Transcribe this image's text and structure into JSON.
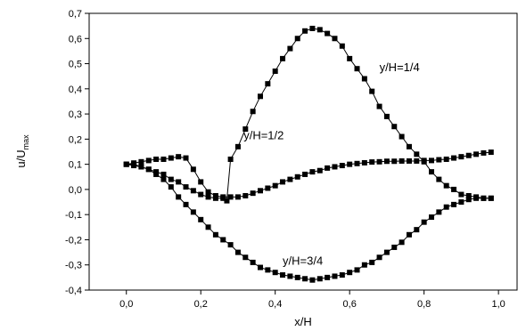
{
  "chart_data": {
    "type": "scatter",
    "xlabel": "x/H",
    "ylabel": {
      "base": "u/U",
      "sub": "max"
    },
    "xlim": [
      -0.1,
      1.05
    ],
    "ylim": [
      -0.4,
      0.7
    ],
    "xticks": [
      {
        "value": 0.0,
        "label": "0,0"
      },
      {
        "value": 0.2,
        "label": "0,2"
      },
      {
        "value": 0.4,
        "label": "0,4"
      },
      {
        "value": 0.6,
        "label": "0,6"
      },
      {
        "value": 0.8,
        "label": "0,8"
      },
      {
        "value": 1.0,
        "label": "1,0"
      }
    ],
    "yticks": [
      {
        "value": -0.4,
        "label": "-0,4"
      },
      {
        "value": -0.3,
        "label": "-0,3"
      },
      {
        "value": -0.2,
        "label": "-0,2"
      },
      {
        "value": -0.1,
        "label": "-0,1"
      },
      {
        "value": 0.0,
        "label": "0,0"
      },
      {
        "value": 0.1,
        "label": "0,1"
      },
      {
        "value": 0.2,
        "label": "0,2"
      },
      {
        "value": 0.3,
        "label": "0,3"
      },
      {
        "value": 0.4,
        "label": "0,4"
      },
      {
        "value": 0.5,
        "label": "0,5"
      },
      {
        "value": 0.6,
        "label": "0,6"
      },
      {
        "value": 0.7,
        "label": "0,7"
      }
    ],
    "grid": false,
    "marker": "square",
    "marker_color": "#000000",
    "annotations": [
      {
        "text": "y/H=1/4",
        "x": 0.68,
        "y": 0.47
      },
      {
        "text": "y/H=1/2",
        "x": 0.315,
        "y": 0.2
      },
      {
        "text": "y/H=3/4",
        "x": 0.42,
        "y": -0.3
      }
    ],
    "series": [
      {
        "points": [
          [
            0.0,
            0.1
          ],
          [
            0.02,
            0.1
          ],
          [
            0.04,
            0.09
          ],
          [
            0.06,
            0.08
          ],
          [
            0.08,
            0.07
          ],
          [
            0.1,
            0.06
          ],
          [
            0.12,
            0.04
          ],
          [
            0.14,
            0.03
          ],
          [
            0.16,
            0.01
          ],
          [
            0.18,
            -0.005
          ],
          [
            0.2,
            -0.02
          ],
          [
            0.22,
            -0.03
          ],
          [
            0.24,
            -0.035
          ],
          [
            0.26,
            -0.035
          ],
          [
            0.27,
            -0.045
          ],
          [
            0.28,
            0.12
          ],
          [
            0.3,
            0.17
          ],
          [
            0.32,
            0.24
          ],
          [
            0.34,
            0.31
          ],
          [
            0.36,
            0.37
          ],
          [
            0.38,
            0.42
          ],
          [
            0.4,
            0.47
          ],
          [
            0.42,
            0.52
          ],
          [
            0.44,
            0.56
          ],
          [
            0.46,
            0.6
          ],
          [
            0.48,
            0.63
          ],
          [
            0.5,
            0.64
          ],
          [
            0.52,
            0.635
          ],
          [
            0.54,
            0.62
          ],
          [
            0.56,
            0.6
          ],
          [
            0.58,
            0.57
          ],
          [
            0.6,
            0.52
          ],
          [
            0.62,
            0.48
          ],
          [
            0.64,
            0.44
          ],
          [
            0.66,
            0.39
          ],
          [
            0.68,
            0.33
          ],
          [
            0.7,
            0.29
          ],
          [
            0.72,
            0.25
          ],
          [
            0.74,
            0.21
          ],
          [
            0.76,
            0.17
          ],
          [
            0.78,
            0.14
          ],
          [
            0.8,
            0.11
          ],
          [
            0.82,
            0.07
          ],
          [
            0.84,
            0.04
          ],
          [
            0.86,
            0.015
          ],
          [
            0.88,
            0.0
          ],
          [
            0.9,
            -0.02
          ],
          [
            0.92,
            -0.025
          ],
          [
            0.94,
            -0.03
          ],
          [
            0.96,
            -0.035
          ],
          [
            0.98,
            -0.035
          ]
        ]
      },
      {
        "points": [
          [
            0.0,
            0.1
          ],
          [
            0.02,
            0.105
          ],
          [
            0.04,
            0.11
          ],
          [
            0.06,
            0.115
          ],
          [
            0.08,
            0.12
          ],
          [
            0.1,
            0.12
          ],
          [
            0.12,
            0.125
          ],
          [
            0.14,
            0.13
          ],
          [
            0.16,
            0.125
          ],
          [
            0.18,
            0.08
          ],
          [
            0.2,
            0.03
          ],
          [
            0.22,
            -0.01
          ],
          [
            0.24,
            -0.025
          ],
          [
            0.26,
            -0.03
          ],
          [
            0.28,
            -0.03
          ],
          [
            0.3,
            -0.03
          ],
          [
            0.32,
            -0.025
          ],
          [
            0.34,
            -0.015
          ],
          [
            0.36,
            -0.005
          ],
          [
            0.38,
            0.005
          ],
          [
            0.4,
            0.015
          ],
          [
            0.42,
            0.03
          ],
          [
            0.44,
            0.04
          ],
          [
            0.46,
            0.05
          ],
          [
            0.48,
            0.06
          ],
          [
            0.5,
            0.07
          ],
          [
            0.52,
            0.075
          ],
          [
            0.54,
            0.085
          ],
          [
            0.56,
            0.09
          ],
          [
            0.58,
            0.095
          ],
          [
            0.6,
            0.1
          ],
          [
            0.62,
            0.103
          ],
          [
            0.64,
            0.106
          ],
          [
            0.66,
            0.109
          ],
          [
            0.68,
            0.11
          ],
          [
            0.7,
            0.112
          ],
          [
            0.72,
            0.112
          ],
          [
            0.74,
            0.113
          ],
          [
            0.76,
            0.113
          ],
          [
            0.78,
            0.113
          ],
          [
            0.8,
            0.115
          ],
          [
            0.82,
            0.115
          ],
          [
            0.84,
            0.118
          ],
          [
            0.86,
            0.12
          ],
          [
            0.88,
            0.125
          ],
          [
            0.9,
            0.13
          ],
          [
            0.92,
            0.135
          ],
          [
            0.94,
            0.14
          ],
          [
            0.96,
            0.145
          ],
          [
            0.98,
            0.148
          ]
        ]
      },
      {
        "points": [
          [
            0.0,
            0.1
          ],
          [
            0.02,
            0.095
          ],
          [
            0.04,
            0.09
          ],
          [
            0.06,
            0.08
          ],
          [
            0.08,
            0.06
          ],
          [
            0.1,
            0.04
          ],
          [
            0.12,
            0.01
          ],
          [
            0.14,
            -0.03
          ],
          [
            0.16,
            -0.06
          ],
          [
            0.18,
            -0.09
          ],
          [
            0.2,
            -0.12
          ],
          [
            0.22,
            -0.15
          ],
          [
            0.24,
            -0.18
          ],
          [
            0.26,
            -0.2
          ],
          [
            0.28,
            -0.22
          ],
          [
            0.3,
            -0.25
          ],
          [
            0.32,
            -0.27
          ],
          [
            0.34,
            -0.29
          ],
          [
            0.36,
            -0.31
          ],
          [
            0.38,
            -0.32
          ],
          [
            0.4,
            -0.33
          ],
          [
            0.42,
            -0.34
          ],
          [
            0.44,
            -0.345
          ],
          [
            0.46,
            -0.35
          ],
          [
            0.48,
            -0.355
          ],
          [
            0.5,
            -0.36
          ],
          [
            0.52,
            -0.355
          ],
          [
            0.54,
            -0.35
          ],
          [
            0.56,
            -0.345
          ],
          [
            0.58,
            -0.34
          ],
          [
            0.6,
            -0.33
          ],
          [
            0.62,
            -0.32
          ],
          [
            0.64,
            -0.3
          ],
          [
            0.66,
            -0.29
          ],
          [
            0.68,
            -0.27
          ],
          [
            0.7,
            -0.25
          ],
          [
            0.72,
            -0.23
          ],
          [
            0.74,
            -0.21
          ],
          [
            0.76,
            -0.18
          ],
          [
            0.78,
            -0.16
          ],
          [
            0.8,
            -0.13
          ],
          [
            0.82,
            -0.11
          ],
          [
            0.84,
            -0.09
          ],
          [
            0.86,
            -0.07
          ],
          [
            0.88,
            -0.06
          ],
          [
            0.9,
            -0.05
          ],
          [
            0.92,
            -0.04
          ],
          [
            0.94,
            -0.035
          ],
          [
            0.96,
            -0.035
          ],
          [
            0.98,
            -0.035
          ]
        ]
      }
    ]
  }
}
